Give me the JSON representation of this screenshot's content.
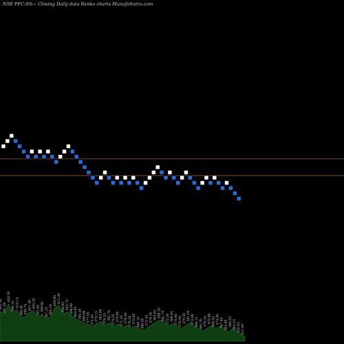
{
  "header": {
    "title": "NSE PFC-S%~  Closing Daily data  Renko  charts MunafaSutra.com"
  },
  "colors": {
    "background": "#000000",
    "up_brick": "#ffffff",
    "down_brick": "#1f6fe0",
    "reference_line": "#a0522d",
    "volume_fill": "#0f3d12",
    "volume_edge": "#1f7a2a"
  },
  "chart_data": {
    "type": "renko",
    "bricks": [
      {
        "col": 0,
        "level": 20,
        "dir": "up"
      },
      {
        "col": 1,
        "level": 21,
        "dir": "up"
      },
      {
        "col": 2,
        "level": 22,
        "dir": "up"
      },
      {
        "col": 3,
        "level": 21,
        "dir": "down"
      },
      {
        "col": 4,
        "level": 20,
        "dir": "down"
      },
      {
        "col": 5,
        "level": 19,
        "dir": "down"
      },
      {
        "col": 6,
        "level": 18,
        "dir": "down"
      },
      {
        "col": 7,
        "level": 19,
        "dir": "up"
      },
      {
        "col": 8,
        "level": 18,
        "dir": "down"
      },
      {
        "col": 9,
        "level": 19,
        "dir": "up"
      },
      {
        "col": 10,
        "level": 18,
        "dir": "down"
      },
      {
        "col": 11,
        "level": 19,
        "dir": "up"
      },
      {
        "col": 12,
        "level": 18,
        "dir": "down"
      },
      {
        "col": 13,
        "level": 17,
        "dir": "down"
      },
      {
        "col": 14,
        "level": 18,
        "dir": "up"
      },
      {
        "col": 15,
        "level": 19,
        "dir": "up"
      },
      {
        "col": 16,
        "level": 20,
        "dir": "up"
      },
      {
        "col": 17,
        "level": 19,
        "dir": "down"
      },
      {
        "col": 18,
        "level": 18,
        "dir": "down"
      },
      {
        "col": 19,
        "level": 17,
        "dir": "down"
      },
      {
        "col": 20,
        "level": 16,
        "dir": "down"
      },
      {
        "col": 21,
        "level": 15,
        "dir": "down"
      },
      {
        "col": 22,
        "level": 14,
        "dir": "down"
      },
      {
        "col": 23,
        "level": 13,
        "dir": "down"
      },
      {
        "col": 24,
        "level": 14,
        "dir": "up"
      },
      {
        "col": 25,
        "level": 15,
        "dir": "up"
      },
      {
        "col": 26,
        "level": 14,
        "dir": "down"
      },
      {
        "col": 27,
        "level": 13,
        "dir": "down"
      },
      {
        "col": 28,
        "level": 14,
        "dir": "up"
      },
      {
        "col": 29,
        "level": 13,
        "dir": "down"
      },
      {
        "col": 30,
        "level": 14,
        "dir": "up"
      },
      {
        "col": 31,
        "level": 13,
        "dir": "down"
      },
      {
        "col": 32,
        "level": 14,
        "dir": "up"
      },
      {
        "col": 33,
        "level": 13,
        "dir": "down"
      },
      {
        "col": 34,
        "level": 12,
        "dir": "down"
      },
      {
        "col": 35,
        "level": 13,
        "dir": "up"
      },
      {
        "col": 36,
        "level": 14,
        "dir": "up"
      },
      {
        "col": 37,
        "level": 15,
        "dir": "up"
      },
      {
        "col": 38,
        "level": 16,
        "dir": "up"
      },
      {
        "col": 39,
        "level": 15,
        "dir": "down"
      },
      {
        "col": 40,
        "level": 14,
        "dir": "down"
      },
      {
        "col": 41,
        "level": 15,
        "dir": "up"
      },
      {
        "col": 42,
        "level": 14,
        "dir": "down"
      },
      {
        "col": 43,
        "level": 13,
        "dir": "down"
      },
      {
        "col": 44,
        "level": 14,
        "dir": "up"
      },
      {
        "col": 45,
        "level": 15,
        "dir": "up"
      },
      {
        "col": 46,
        "level": 14,
        "dir": "down"
      },
      {
        "col": 47,
        "level": 13,
        "dir": "down"
      },
      {
        "col": 48,
        "level": 12,
        "dir": "down"
      },
      {
        "col": 49,
        "level": 13,
        "dir": "up"
      },
      {
        "col": 50,
        "level": 14,
        "dir": "up"
      },
      {
        "col": 51,
        "level": 13,
        "dir": "down"
      },
      {
        "col": 52,
        "level": 14,
        "dir": "up"
      },
      {
        "col": 53,
        "level": 13,
        "dir": "down"
      },
      {
        "col": 54,
        "level": 12,
        "dir": "down"
      },
      {
        "col": 55,
        "level": 13,
        "dir": "up"
      },
      {
        "col": 56,
        "level": 12,
        "dir": "down"
      },
      {
        "col": 57,
        "level": 11,
        "dir": "down"
      },
      {
        "col": 58,
        "level": 10,
        "dir": "down"
      }
    ],
    "reference_lines": [
      {
        "name": "upper",
        "level": 17.2
      },
      {
        "name": "lower",
        "level": 14.0
      }
    ],
    "volume_labels": [
      "402.28",
      "391.00",
      "420.50",
      "398.10",
      "410.15",
      "388.40",
      "395.75",
      "401.30",
      "405.20",
      "392.85",
      "399.60",
      "387.25",
      "394.10",
      "409.85",
      "412.30",
      "398.05",
      "403.75",
      "396.90",
      "389.45",
      "385.20",
      "380.60",
      "377.95",
      "372.40",
      "379.15",
      "383.80",
      "376.25",
      "381.70",
      "374.55",
      "378.90",
      "371.35",
      "376.80",
      "370.20",
      "375.65",
      "369.10",
      "366.45",
      "372.95",
      "378.30",
      "383.65",
      "388.20",
      "381.75",
      "375.30",
      "380.85",
      "374.40",
      "370.95",
      "376.50",
      "381.05",
      "374.60",
      "368.15",
      "364.70",
      "370.25",
      "375.80",
      "369.35",
      "374.90",
      "367.45",
      "362.00",
      "368.55",
      "363.10",
      "355.65",
      "351.49"
    ],
    "volume_profile": [
      0.62,
      0.55,
      0.78,
      0.58,
      0.66,
      0.49,
      0.52,
      0.6,
      0.64,
      0.5,
      0.57,
      0.45,
      0.51,
      0.7,
      0.74,
      0.56,
      0.61,
      0.53,
      0.46,
      0.42,
      0.38,
      0.35,
      0.3,
      0.37,
      0.41,
      0.33,
      0.39,
      0.31,
      0.36,
      0.28,
      0.34,
      0.27,
      0.32,
      0.25,
      0.22,
      0.29,
      0.35,
      0.4,
      0.44,
      0.38,
      0.32,
      0.37,
      0.31,
      0.27,
      0.33,
      0.38,
      0.31,
      0.25,
      0.21,
      0.27,
      0.32,
      0.26,
      0.31,
      0.24,
      0.19,
      0.26,
      0.2,
      0.14,
      0.1
    ]
  }
}
